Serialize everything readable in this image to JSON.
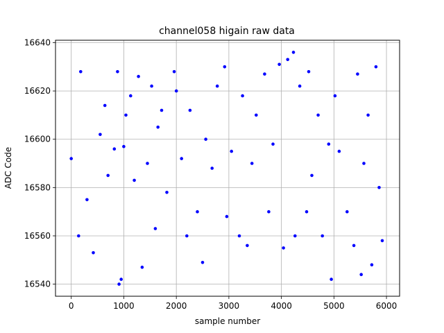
{
  "chart_data": {
    "type": "scatter",
    "title": "channel058 higain raw data",
    "xlabel": "sample number",
    "ylabel": "ADC Code",
    "xlim": [
      -300,
      6250
    ],
    "ylim": [
      16535,
      16641
    ],
    "xticks": [
      0,
      1000,
      2000,
      3000,
      4000,
      5000,
      6000
    ],
    "xtick_labels": [
      "0",
      "1000",
      "2000",
      "3000",
      "4000",
      "5000",
      "6000"
    ],
    "yticks": [
      16540,
      16560,
      16580,
      16600,
      16620,
      16640
    ],
    "ytick_labels": [
      "16540",
      "16560",
      "16580",
      "16600",
      "16620",
      "16640"
    ],
    "grid": true,
    "marker_color": "#0000ff",
    "series": [
      {
        "name": "",
        "x": [
          0,
          140,
          180,
          300,
          420,
          550,
          640,
          700,
          820,
          880,
          910,
          950,
          1000,
          1040,
          1130,
          1200,
          1280,
          1350,
          1450,
          1530,
          1600,
          1650,
          1720,
          1820,
          1960,
          2000,
          2100,
          2200,
          2260,
          2400,
          2500,
          2560,
          2680,
          2780,
          2920,
          2960,
          3050,
          3200,
          3260,
          3350,
          3440,
          3520,
          3680,
          3760,
          3840,
          3960,
          4040,
          4120,
          4230,
          4260,
          4350,
          4480,
          4520,
          4580,
          4700,
          4780,
          4900,
          4950,
          5020,
          5100,
          5250,
          5380,
          5450,
          5520,
          5570,
          5650,
          5720,
          5800,
          5860,
          5920
        ],
        "y": [
          16592,
          16560,
          16628,
          16575,
          16553,
          16602,
          16614,
          16585,
          16596,
          16628,
          16540,
          16542,
          16597,
          16610,
          16618,
          16583,
          16626,
          16547,
          16590,
          16622,
          16563,
          16605,
          16612,
          16578,
          16628,
          16620,
          16592,
          16560,
          16612,
          16570,
          16549,
          16600,
          16588,
          16622,
          16630,
          16568,
          16595,
          16560,
          16618,
          16556,
          16590,
          16610,
          16627,
          16570,
          16598,
          16631,
          16555,
          16633,
          16636,
          16560,
          16622,
          16570,
          16628,
          16585,
          16610,
          16560,
          16598,
          16542,
          16618,
          16595,
          16570,
          16556,
          16627,
          16544,
          16590,
          16610,
          16548,
          16630,
          16580,
          16558
        ]
      }
    ]
  }
}
